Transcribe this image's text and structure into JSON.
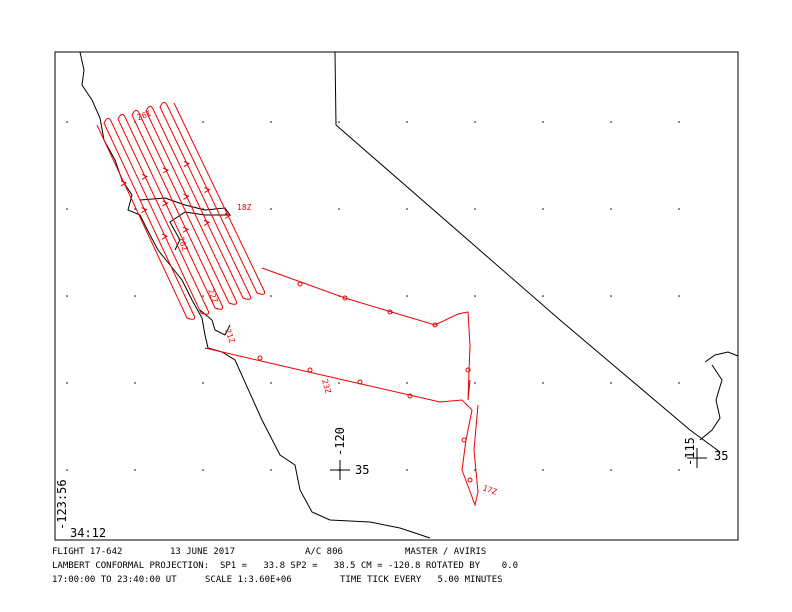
{
  "footer": {
    "line1": [
      "FLIGHT 17-642",
      "13 JUNE 2017",
      "A/C 806",
      "MASTER / AVIRIS"
    ],
    "line2": "LAMBERT CONFORMAL PROJECTION:  SP1 =   33.8 SP2 =   38.5 CM = -120.8 ROTATED BY    0.0",
    "line3": [
      "17:00:00 TO 23:40:00 UT",
      "SCALE 1:3.60E+06",
      "TIME TICK EVERY   5.00 MINUTES"
    ]
  },
  "map": {
    "corner_lon": "-123:56",
    "corner_lat": "34:12",
    "crosses": [
      {
        "lon": "-120",
        "lat": "35"
      },
      {
        "lon": "-115",
        "lat": "35"
      }
    ],
    "time_labels": [
      "19Z",
      "18Z",
      "20Z",
      "21Z",
      "22Z",
      "23Z",
      "17Z"
    ]
  }
}
